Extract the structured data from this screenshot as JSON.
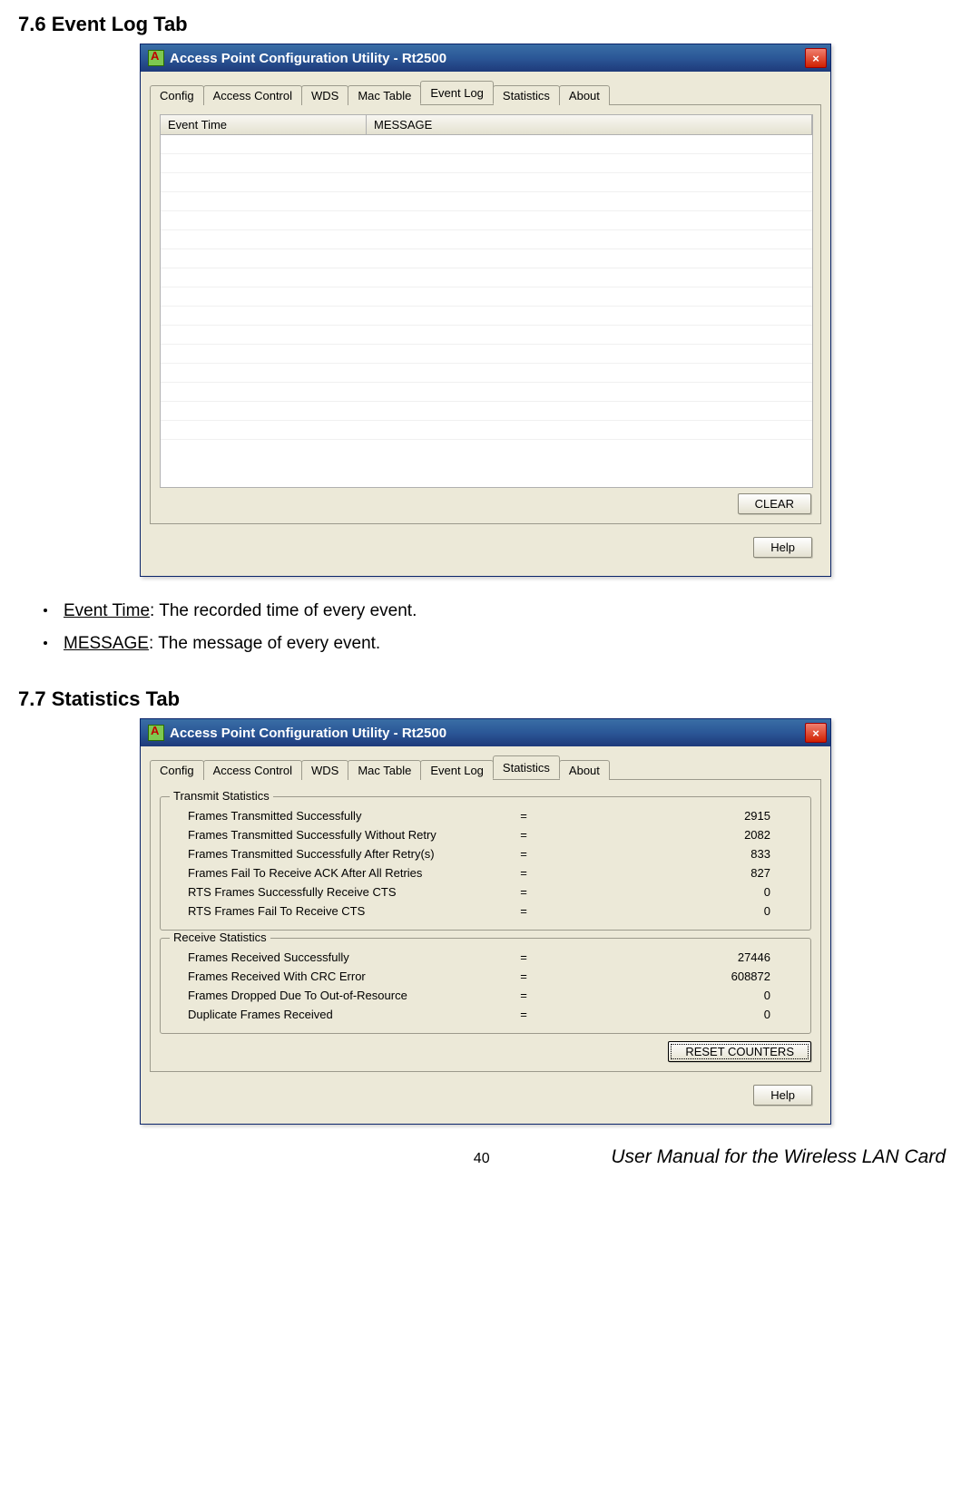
{
  "section1": {
    "heading": "7.6 Event Log Tab",
    "window_title": "Access Point Configuration Utility - Rt2500",
    "tabs": [
      "Config",
      "Access Control",
      "WDS",
      "Mac Table",
      "Event Log",
      "Statistics",
      "About"
    ],
    "active_tab": 4,
    "columns": {
      "time": "Event Time",
      "message": "MESSAGE"
    },
    "rows_blank": 16,
    "clear_label": "CLEAR",
    "help_label": "Help"
  },
  "bullets": [
    {
      "label": "Event Time",
      "desc": ": The recorded time of every event."
    },
    {
      "label": "MESSAGE",
      "desc": ": The message of every event."
    }
  ],
  "section2": {
    "heading": "7.7 Statistics Tab",
    "window_title": "Access Point Configuration Utility - Rt2500",
    "tabs": [
      "Config",
      "Access Control",
      "WDS",
      "Mac Table",
      "Event Log",
      "Statistics",
      "About"
    ],
    "active_tab": 5,
    "transmit": {
      "title": "Transmit Statistics",
      "rows": [
        {
          "label": "Frames Transmitted Successfully",
          "value": "2915"
        },
        {
          "label": "Frames Transmitted Successfully  Without Retry",
          "value": "2082"
        },
        {
          "label": "Frames Transmitted Successfully After Retry(s)",
          "value": "833"
        },
        {
          "label": "Frames Fail To Receive ACK After All Retries",
          "value": "827"
        },
        {
          "label": "RTS Frames Successfully Receive CTS",
          "value": "0"
        },
        {
          "label": "RTS Frames Fail To Receive CTS",
          "value": "0"
        }
      ]
    },
    "receive": {
      "title": "Receive Statistics",
      "rows": [
        {
          "label": "Frames Received Successfully",
          "value": "27446"
        },
        {
          "label": "Frames Received With CRC Error",
          "value": "608872"
        },
        {
          "label": "Frames Dropped Due To Out-of-Resource",
          "value": "0"
        },
        {
          "label": "Duplicate Frames Received",
          "value": "0"
        }
      ]
    },
    "reset_label": "RESET COUNTERS",
    "help_label": "Help"
  },
  "footer": {
    "page": "40",
    "text": "User Manual for the Wireless LAN Card"
  },
  "style": {
    "titlebar_gradient": [
      "#3a6ea5",
      "#1e3a7a"
    ],
    "dialog_bg": "#ece9d8",
    "close_btn_color": "#d02000"
  }
}
